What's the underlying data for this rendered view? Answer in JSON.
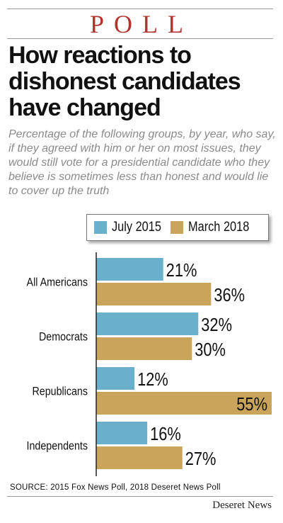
{
  "header": {
    "kicker": "POLL",
    "title": "How reactions to dishonest candidates have changed",
    "subtitle": "Percentage of the following groups, by year, who say, if they agreed with him or her on most issues, they would still vote for a presidential candidate who they believe is sometimes less than honest and would lie to cover up the truth"
  },
  "colors": {
    "kicker": "#b4322b",
    "july_2015": "#6aafcb",
    "march_2018": "#c9a45a",
    "axis": "#222222"
  },
  "chart_data": {
    "type": "bar",
    "orientation": "horizontal",
    "categories": [
      "All Americans",
      "Democrats",
      "Republicans",
      "Independents"
    ],
    "series": [
      {
        "name": "July 2015",
        "values": [
          21,
          32,
          12,
          16
        ]
      },
      {
        "name": "March 2018",
        "values": [
          36,
          30,
          55,
          27
        ]
      }
    ],
    "value_suffix": "%",
    "xlim": [
      0,
      55
    ],
    "legend": "top",
    "grid": false
  },
  "footer": {
    "source": "SOURCE: 2015 Fox News Poll, 2018 Deseret News Poll",
    "credit": "Deseret News"
  }
}
